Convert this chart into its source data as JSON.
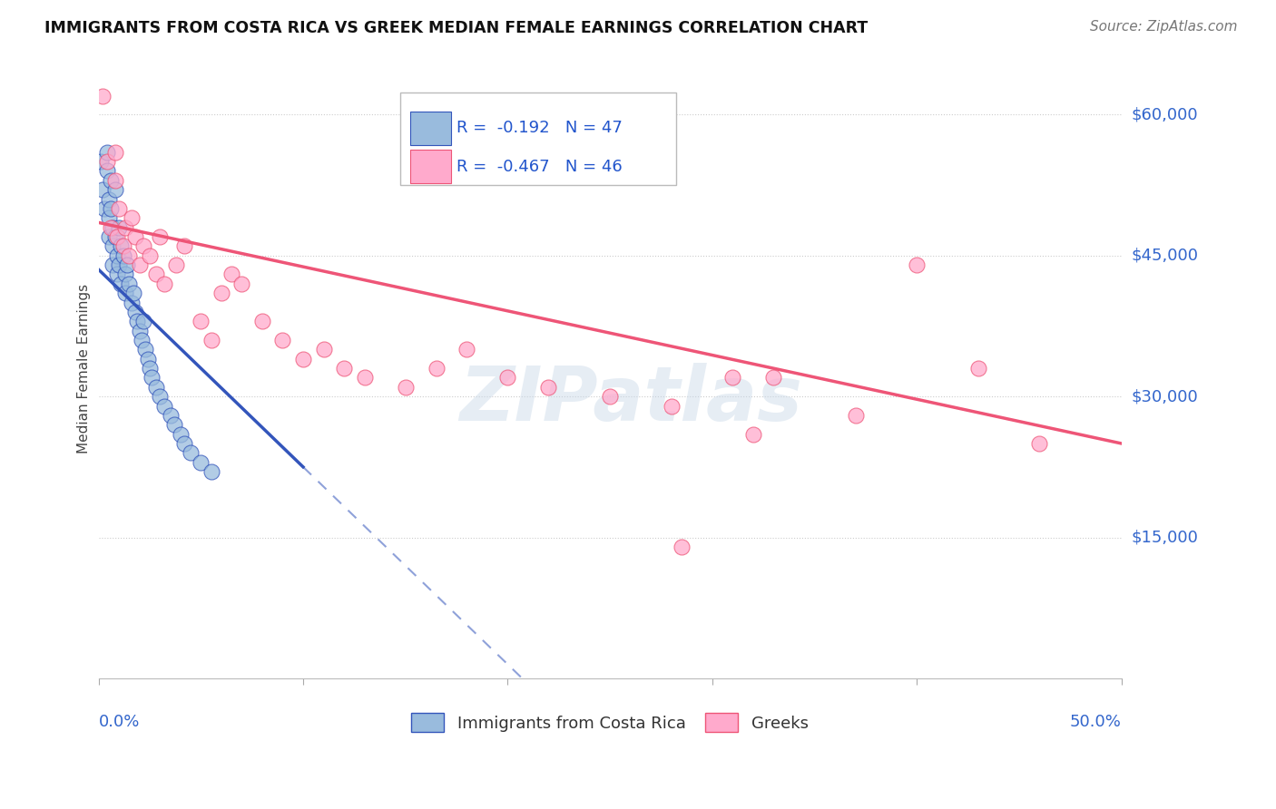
{
  "title": "IMMIGRANTS FROM COSTA RICA VS GREEK MEDIAN FEMALE EARNINGS CORRELATION CHART",
  "source": "Source: ZipAtlas.com",
  "ylabel": "Median Female Earnings",
  "y_ticks": [
    15000,
    30000,
    45000,
    60000
  ],
  "y_tick_labels": [
    "$15,000",
    "$30,000",
    "$45,000",
    "$60,000"
  ],
  "x_min": 0.0,
  "x_max": 0.5,
  "y_min": 0,
  "y_max": 66000,
  "blue_R": -0.192,
  "blue_N": 47,
  "pink_R": -0.467,
  "pink_N": 46,
  "blue_scatter_x": [
    0.001,
    0.002,
    0.003,
    0.004,
    0.004,
    0.005,
    0.005,
    0.005,
    0.006,
    0.006,
    0.007,
    0.007,
    0.007,
    0.008,
    0.008,
    0.009,
    0.009,
    0.01,
    0.01,
    0.011,
    0.011,
    0.012,
    0.013,
    0.013,
    0.014,
    0.015,
    0.016,
    0.017,
    0.018,
    0.019,
    0.02,
    0.021,
    0.022,
    0.023,
    0.024,
    0.025,
    0.026,
    0.028,
    0.03,
    0.032,
    0.035,
    0.037,
    0.04,
    0.042,
    0.045,
    0.05,
    0.055
  ],
  "blue_scatter_y": [
    55000,
    52000,
    50000,
    56000,
    54000,
    51000,
    49000,
    47000,
    53000,
    50000,
    48000,
    46000,
    44000,
    52000,
    47000,
    45000,
    43000,
    48000,
    44000,
    46000,
    42000,
    45000,
    43000,
    41000,
    44000,
    42000,
    40000,
    41000,
    39000,
    38000,
    37000,
    36000,
    38000,
    35000,
    34000,
    33000,
    32000,
    31000,
    30000,
    29000,
    28000,
    27000,
    26000,
    25000,
    24000,
    23000,
    22000
  ],
  "pink_scatter_x": [
    0.002,
    0.004,
    0.006,
    0.008,
    0.008,
    0.009,
    0.01,
    0.012,
    0.013,
    0.015,
    0.016,
    0.018,
    0.02,
    0.022,
    0.025,
    0.028,
    0.03,
    0.032,
    0.038,
    0.042,
    0.05,
    0.055,
    0.06,
    0.065,
    0.07,
    0.08,
    0.09,
    0.1,
    0.11,
    0.12,
    0.13,
    0.15,
    0.165,
    0.18,
    0.2,
    0.22,
    0.25,
    0.28,
    0.31,
    0.33,
    0.37,
    0.4,
    0.43,
    0.46,
    0.285,
    0.32
  ],
  "pink_scatter_y": [
    62000,
    55000,
    48000,
    53000,
    56000,
    47000,
    50000,
    46000,
    48000,
    45000,
    49000,
    47000,
    44000,
    46000,
    45000,
    43000,
    47000,
    42000,
    44000,
    46000,
    38000,
    36000,
    41000,
    43000,
    42000,
    38000,
    36000,
    34000,
    35000,
    33000,
    32000,
    31000,
    33000,
    35000,
    32000,
    31000,
    30000,
    29000,
    32000,
    32000,
    28000,
    44000,
    33000,
    25000,
    14000,
    26000
  ],
  "blue_color": "#99BBDD",
  "pink_color": "#FFAACC",
  "blue_line_color": "#3355BB",
  "pink_line_color": "#EE5577",
  "blue_line_start": 0.0,
  "blue_line_end_solid": 0.1,
  "blue_line_end_dash": 0.5,
  "pink_line_start": 0.0,
  "pink_line_end": 0.5,
  "blue_intercept": 43500,
  "blue_slope": -210000,
  "pink_intercept": 48500,
  "pink_slope": -47000,
  "watermark_text": "ZIPatlas",
  "background_color": "#FFFFFF",
  "legend_label_blue": "Immigrants from Costa Rica",
  "legend_label_pink": "Greeks"
}
